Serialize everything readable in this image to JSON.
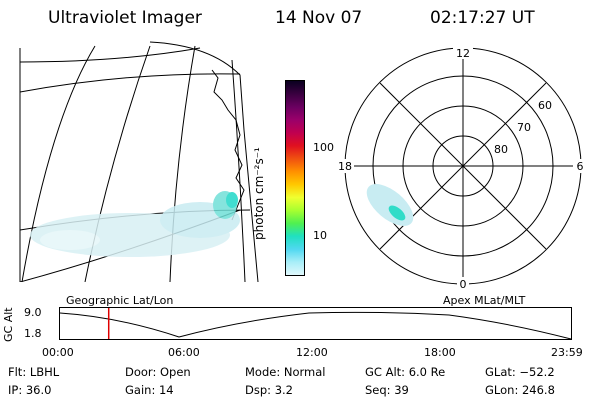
{
  "header": {
    "title": "Ultraviolet Imager",
    "date": "14 Nov 07",
    "time": "02:17:27 UT"
  },
  "geo_panel": {
    "label": "Geographic Lat/Lon"
  },
  "colorbar": {
    "unit_label": "photon cm⁻²s⁻¹",
    "ticks": [
      "100",
      "10"
    ],
    "colors": [
      "#0a0020",
      "#3a0040",
      "#6a0060",
      "#9a006a",
      "#c00050",
      "#e01020",
      "#f05010",
      "#ff9000",
      "#ffc800",
      "#f0ff30",
      "#a8ff30",
      "#50f050",
      "#20e0c0",
      "#50d8f0",
      "#a8eef8",
      "#e0f8fc"
    ]
  },
  "polar_panel": {
    "label": "Apex MLat/MLT",
    "mlt_labels": [
      "12",
      "18",
      "6",
      "0"
    ],
    "mlat_labels": [
      "60",
      "70",
      "80"
    ]
  },
  "timeline": {
    "axis_label": "GC Alt",
    "y_ticks": [
      "9.0",
      "1.8"
    ],
    "x_ticks": [
      "00:00",
      "06:00",
      "12:00",
      "18:00",
      "23:59"
    ],
    "marker_time": "02:17",
    "marker_color": "#e00000"
  },
  "info": {
    "row1": [
      {
        "key": "Flt:",
        "value": "LBHL"
      },
      {
        "key": "Door:",
        "value": "Open"
      },
      {
        "key": "Mode:",
        "value": "Normal"
      },
      {
        "key": "GC Alt:",
        "value": "6.0 Re"
      },
      {
        "key": "GLat:",
        "value": "−52.2"
      }
    ],
    "row2": [
      {
        "key": "IP:",
        "value": "36.0"
      },
      {
        "key": "Gain:",
        "value": "14"
      },
      {
        "key": "Dsp:",
        "value": "3.2"
      },
      {
        "key": "Seq:",
        "value": "39"
      },
      {
        "key": "GLon:",
        "value": "246.8"
      }
    ]
  }
}
